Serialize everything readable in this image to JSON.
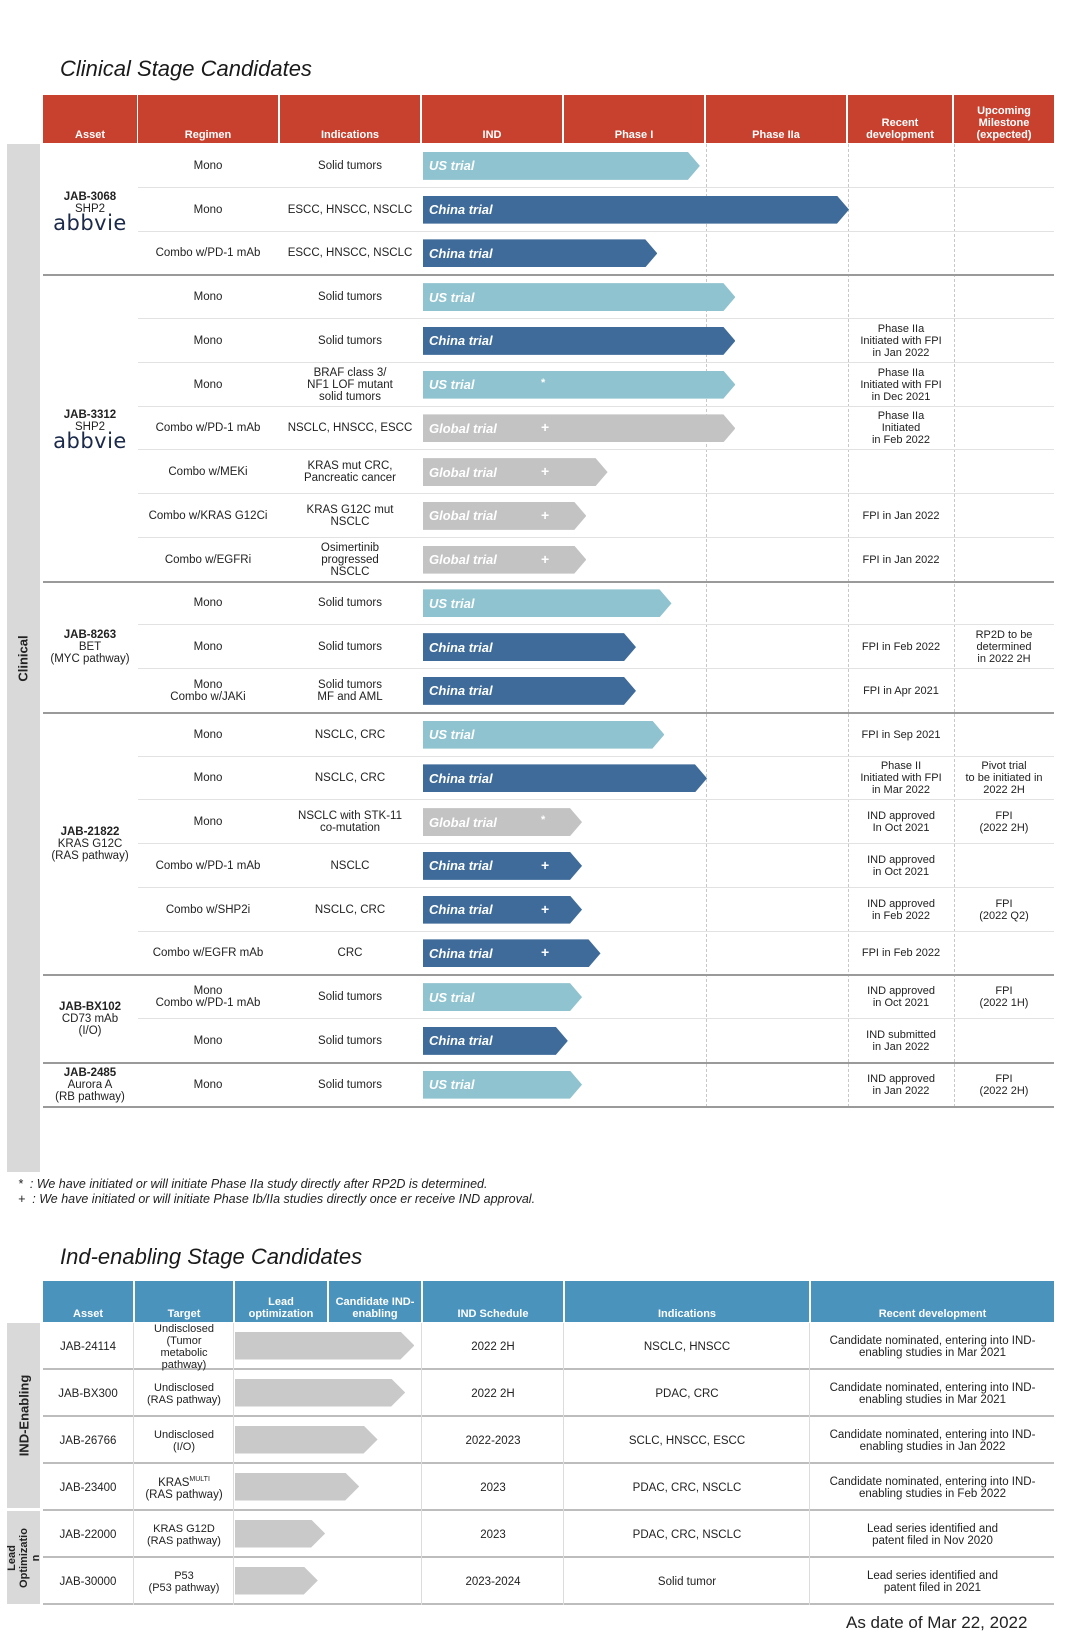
{
  "clinical": {
    "title": "Clinical Stage Candidates",
    "sidebar_label": "Clinical",
    "headers": [
      "Asset",
      "Regimen",
      "Indications",
      "IND",
      "Phase I",
      "Phase IIa",
      "Recent development",
      "Upcoming Milestone (expected)"
    ],
    "groups": [
      {
        "name": "JAB-3068",
        "sub": "SHP2",
        "logo": "abbvie",
        "rows": [
          0,
          2
        ]
      },
      {
        "name": "JAB-3312",
        "sub": "SHP2",
        "logo": "abbvie",
        "rows": [
          3,
          9
        ]
      },
      {
        "name": "JAB-8263",
        "sub": "BET\n(MYC pathway)",
        "logo": "",
        "rows": [
          10,
          12
        ]
      },
      {
        "name": "JAB-21822",
        "sub": "KRAS G12C\n(RAS pathway)",
        "logo": "",
        "rows": [
          13,
          18
        ]
      },
      {
        "name": "JAB-BX102",
        "sub": "CD73 mAb\n(I/O)",
        "logo": "",
        "rows": [
          19,
          20
        ]
      },
      {
        "name": "JAB-2485",
        "sub": "Aurora A\n(RB pathway)",
        "logo": "",
        "rows": [
          21,
          21
        ]
      }
    ],
    "rows": [
      {
        "regimen": "Mono",
        "indication": "Solid tumors",
        "trial": "US trial",
        "style": "light",
        "progress": 1.95,
        "mark": "",
        "recent": "",
        "milestone": ""
      },
      {
        "regimen": "Mono",
        "indication": "ESCC, HNSCC, NSCLC",
        "trial": "China trial",
        "style": "dark",
        "progress": 3.0,
        "mark": "",
        "recent": "",
        "milestone": ""
      },
      {
        "regimen": "Combo w/PD-1 mAb",
        "indication": "ESCC, HNSCC, NSCLC",
        "trial": "China trial",
        "style": "dark",
        "progress": 1.65,
        "mark": "",
        "recent": "",
        "milestone": ""
      },
      {
        "regimen": "Mono",
        "indication": "Solid tumors",
        "trial": "US trial",
        "style": "light",
        "progress": 2.2,
        "mark": "",
        "recent": "",
        "milestone": ""
      },
      {
        "regimen": "Mono",
        "indication": "Solid tumors",
        "trial": "China trial",
        "style": "dark",
        "progress": 2.2,
        "mark": "",
        "recent": "Phase IIa\nInitiated with FPI\nin Jan 2022",
        "milestone": ""
      },
      {
        "regimen": "Mono",
        "indication": "BRAF class 3/\nNF1 LOF mutant\nsolid tumors",
        "trial": "US trial",
        "style": "light",
        "progress": 2.2,
        "mark": "*",
        "recent": "Phase IIa\nInitiated with FPI\nin Dec 2021",
        "milestone": ""
      },
      {
        "regimen": "Combo w/PD-1 mAb",
        "indication": "NSCLC, HNSCC, ESCC",
        "trial": "Global trial",
        "style": "grey",
        "progress": 2.2,
        "mark": "+",
        "recent": "Phase IIa\nInitiated\nin Feb 2022",
        "milestone": ""
      },
      {
        "regimen": "Combo w/MEKi",
        "indication": "KRAS mut CRC,\nPancreatic cancer",
        "trial": "Global trial",
        "style": "grey",
        "progress": 1.3,
        "mark": "+",
        "recent": "",
        "milestone": ""
      },
      {
        "regimen": "Combo w/KRAS G12Ci",
        "indication": "KRAS G12C mut\nNSCLC",
        "trial": "Global trial",
        "style": "grey",
        "progress": 1.15,
        "mark": "+",
        "recent": "FPI in Jan 2022",
        "milestone": ""
      },
      {
        "regimen": "Combo w/EGFRi",
        "indication": "Osimertinib\nprogressed\nNSCLC",
        "trial": "Global trial",
        "style": "grey",
        "progress": 1.15,
        "mark": "+",
        "recent": "FPI in Jan 2022",
        "milestone": ""
      },
      {
        "regimen": "Mono",
        "indication": "Solid tumors",
        "trial": "US trial",
        "style": "light",
        "progress": 1.75,
        "mark": "",
        "recent": "",
        "milestone": ""
      },
      {
        "regimen": "Mono",
        "indication": "Solid tumors",
        "trial": "China trial",
        "style": "dark",
        "progress": 1.5,
        "mark": "",
        "recent": "FPI in Feb 2022",
        "milestone": "RP2D to be\ndetermined\nin 2022 2H"
      },
      {
        "regimen": "Mono\nCombo w/JAKi",
        "indication": "Solid tumors\nMF and AML",
        "trial": "China trial",
        "style": "dark",
        "progress": 1.5,
        "mark": "",
        "recent": "FPI in Apr 2021",
        "milestone": ""
      },
      {
        "regimen": "Mono",
        "indication": "NSCLC, CRC",
        "trial": "US trial",
        "style": "light",
        "progress": 1.7,
        "mark": "",
        "recent": "FPI in Sep 2021",
        "milestone": ""
      },
      {
        "regimen": "Mono",
        "indication": "NSCLC, CRC",
        "trial": "China trial",
        "style": "dark",
        "progress": 2.0,
        "mark": "",
        "recent": "Phase II\nInitiated with FPI\nin Mar 2022",
        "milestone": "Pivot trial\nto be initiated in\n2022 2H"
      },
      {
        "regimen": "Mono",
        "indication": "NSCLC with STK-11\nco-mutation",
        "trial": "Global trial",
        "style": "grey",
        "progress": 1.12,
        "mark": "*",
        "recent": "IND approved\nIn Oct 2021",
        "milestone": "FPI\n(2022 2H)"
      },
      {
        "regimen": "Combo w/PD-1 mAb",
        "indication": "NSCLC",
        "trial": "China trial",
        "style": "dark",
        "progress": 1.12,
        "mark": "+",
        "recent": "IND approved\nin Oct 2021",
        "milestone": ""
      },
      {
        "regimen": "Combo w/SHP2i",
        "indication": "NSCLC, CRC",
        "trial": "China trial",
        "style": "dark",
        "progress": 1.12,
        "mark": "+",
        "recent": "IND approved\nin Feb 2022",
        "milestone": "FPI\n(2022 Q2)"
      },
      {
        "regimen": "Combo w/EGFR mAb",
        "indication": "CRC",
        "trial": "China trial",
        "style": "dark",
        "progress": 1.25,
        "mark": "+",
        "recent": "FPI in Feb 2022",
        "milestone": ""
      },
      {
        "regimen": "Mono\nCombo w/PD-1 mAb",
        "indication": "Solid tumors",
        "trial": "US trial",
        "style": "light",
        "progress": 1.12,
        "mark": "",
        "recent": "IND approved\nin Oct 2021",
        "milestone": "FPI\n(2022 1H)"
      },
      {
        "regimen": "Mono",
        "indication": "Solid tumors",
        "trial": "China trial",
        "style": "dark",
        "progress": 1.02,
        "mark": "",
        "recent": "IND submitted\nin Jan 2022",
        "milestone": ""
      },
      {
        "regimen": "Mono",
        "indication": "Solid tumors",
        "trial": "US trial",
        "style": "light",
        "progress": 1.12,
        "mark": "",
        "recent": "IND approved\nin Jan 2022",
        "milestone": "FPI\n(2022 2H)"
      }
    ],
    "footnotes": [
      {
        "symbol": "*",
        "text": ": We have initiated or will initiate Phase IIa study directly after RP2D is determined."
      },
      {
        "symbol": "+",
        "text": ": We have initiated or will initiate Phase Ib/IIa studies directly once er receive IND approval."
      }
    ]
  },
  "ind_enabling": {
    "title": "Ind-enabling Stage Candidates",
    "sidebar_ind": "IND-Enabling",
    "sidebar_lead": "Lead\nOptimizatio\nn",
    "headers": [
      "Asset",
      "Target",
      "Lead optimization",
      "Candidate IND-enabling",
      "IND Schedule",
      "Indications",
      "Recent development"
    ],
    "rows": [
      {
        "asset": "JAB-24114",
        "target": "Undisclosed\n(Tumor\nmetabolic\npathway)",
        "target_sup": "",
        "progress": 1.95,
        "schedule": "2022 2H",
        "indication": "NSCLC, HNSCC",
        "recent": "Candidate nominated, entering into IND-\nenabling studies in Mar 2021"
      },
      {
        "asset": "JAB-BX300",
        "target": "Undisclosed\n(RAS pathway)",
        "target_sup": "",
        "progress": 1.85,
        "schedule": "2022 2H",
        "indication": "PDAC, CRC",
        "recent": "Candidate nominated, entering into IND-\nenabling studies in Mar 2021"
      },
      {
        "asset": "JAB-26766",
        "target": "Undisclosed\n(I/O)",
        "target_sup": "",
        "progress": 1.55,
        "schedule": "2022-2023",
        "indication": "SCLC, HNSCC, ESCC",
        "recent": "Candidate nominated, entering into IND-\nenabling studies in Jan 2022"
      },
      {
        "asset": "JAB-23400",
        "target": "KRAS",
        "target_sup": "MULTI",
        "target2": "(RAS pathway)",
        "progress": 1.35,
        "schedule": "2023",
        "indication": "PDAC, CRC, NSCLC",
        "recent": "Candidate nominated, entering into IND-\nenabling studies in Feb 2022"
      },
      {
        "asset": "JAB-22000",
        "target": "KRAS G12D\n(RAS pathway)",
        "target_sup": "",
        "progress": 0.98,
        "schedule": "2023",
        "indication": "PDAC, CRC, NSCLC",
        "recent": "Lead series identified and\npatent filed in Nov 2020"
      },
      {
        "asset": "JAB-30000",
        "target": "P53\n(P53 pathway)",
        "target_sup": "",
        "progress": 0.9,
        "schedule": "2023-2024",
        "indication": "Solid tumor",
        "recent": "Lead series identified and\npatent filed in 2021"
      }
    ]
  },
  "as_of": "As date of Mar 22, 2022",
  "colors": {
    "header_red": "#c8412f",
    "header_blue": "#4a93bd",
    "us_trial": "#8fc3cf",
    "china_trial": "#3e6b99",
    "global_trial": "#c3c3c3"
  }
}
